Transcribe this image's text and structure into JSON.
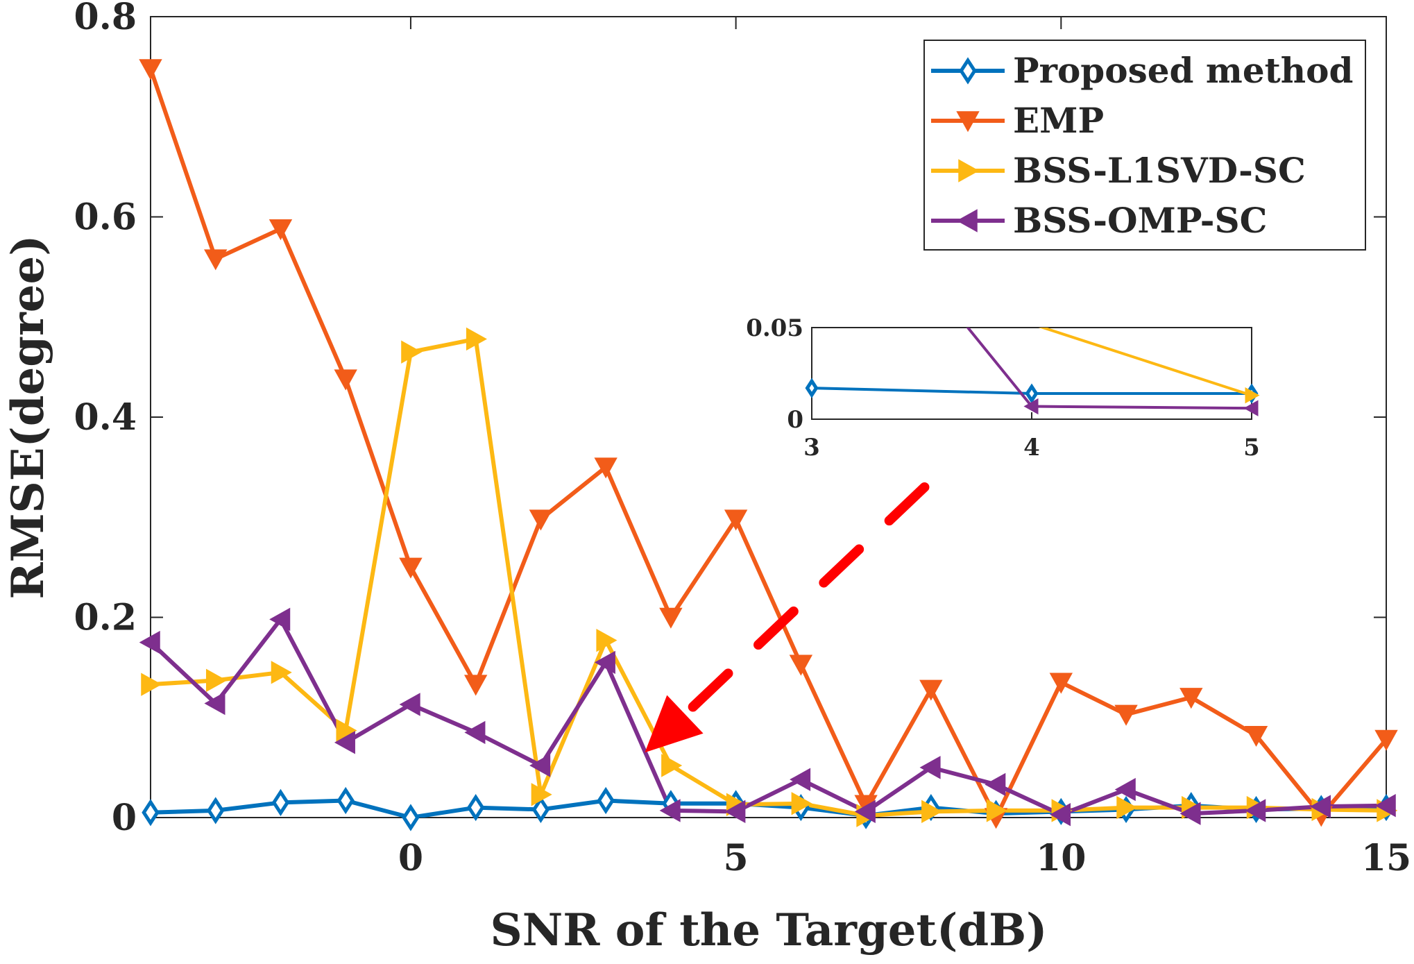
{
  "chart_data": {
    "type": "line",
    "xlabel": "SNR of the Target(dB)",
    "ylabel": "RMSE(degree)",
    "xlim": [
      -4,
      15
    ],
    "ylim": [
      0,
      0.8
    ],
    "xticks": [
      0,
      5,
      10,
      15
    ],
    "yticks": [
      0,
      0.2,
      0.4,
      0.6,
      0.8
    ],
    "xtick_labels": [
      "0",
      "5",
      "10",
      "15"
    ],
    "ytick_labels": [
      "0",
      "0.2",
      "0.4",
      "0.6",
      "0.8"
    ],
    "legend_position": "top-right",
    "x": [
      -4,
      -3,
      -2,
      -1,
      0,
      1,
      2,
      3,
      4,
      5,
      6,
      7,
      8,
      9,
      10,
      11,
      12,
      13,
      14,
      15
    ],
    "series": [
      {
        "name": "Proposed method",
        "color": "#0072BD",
        "marker": "diamond",
        "values": [
          0.005,
          0.007,
          0.015,
          0.017,
          0.0,
          0.01,
          0.008,
          0.017,
          0.014,
          0.014,
          0.01,
          0.002,
          0.01,
          0.004,
          0.006,
          0.008,
          0.012,
          0.008,
          0.009,
          0.01
        ]
      },
      {
        "name": "EMP",
        "color": "#F25C19",
        "marker": "triangle-down",
        "values": [
          0.748,
          0.558,
          0.588,
          0.438,
          0.25,
          0.133,
          0.298,
          0.35,
          0.2,
          0.298,
          0.153,
          0.013,
          0.128,
          0.0,
          0.135,
          0.103,
          0.12,
          0.082,
          0.002,
          0.078
        ]
      },
      {
        "name": "BSS-L1SVD-SC",
        "color": "#FDB813",
        "marker": "triangle-right",
        "values": [
          0.133,
          0.137,
          0.145,
          0.087,
          0.465,
          0.478,
          0.023,
          0.177,
          0.052,
          0.013,
          0.014,
          0.002,
          0.006,
          0.007,
          0.007,
          0.01,
          0.01,
          0.01,
          0.008,
          0.007
        ]
      },
      {
        "name": "BSS-OMP-SC",
        "color": "#7E2F8E",
        "marker": "triangle-left",
        "values": [
          0.175,
          0.114,
          0.198,
          0.075,
          0.113,
          0.085,
          0.052,
          0.155,
          0.007,
          0.006,
          0.038,
          0.006,
          0.05,
          0.033,
          0.003,
          0.028,
          0.004,
          0.007,
          0.011,
          0.012
        ]
      }
    ],
    "annotation": {
      "type": "dashed-arrow",
      "color": "#FF0000",
      "from": [
        7.9,
        0.33
      ],
      "to": [
        3.6,
        0.065
      ],
      "description": "zoom indicator pointing to the inset"
    },
    "inset": {
      "xlim": [
        3,
        5
      ],
      "ylim": [
        0,
        0.05
      ],
      "xticks": [
        3,
        4,
        5
      ],
      "yticks": [
        0,
        0.05
      ],
      "xtick_labels": [
        "3",
        "4",
        "5"
      ],
      "ytick_labels": [
        "0",
        "0.05"
      ]
    }
  }
}
